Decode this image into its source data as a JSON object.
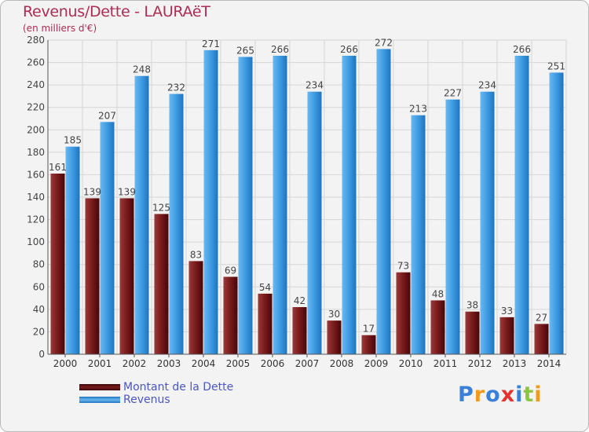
{
  "chart_data": {
    "type": "bar",
    "title": "Revenus/Dette - LAURAëT",
    "subtitle": "(en milliers d'€)",
    "categories": [
      "2000",
      "2001",
      "2002",
      "2003",
      "2004",
      "2005",
      "2006",
      "2007",
      "2008",
      "2009",
      "2010",
      "2011",
      "2012",
      "2013",
      "2014"
    ],
    "series": [
      {
        "name": "Montant de la Dette",
        "values": [
          161,
          139,
          139,
          125,
          83,
          69,
          54,
          42,
          30,
          17,
          73,
          48,
          38,
          33,
          27
        ],
        "color": "#6b0f14"
      },
      {
        "name": "Revenus",
        "values": [
          185,
          207,
          248,
          232,
          271,
          265,
          266,
          234,
          266,
          272,
          213,
          227,
          234,
          266,
          251
        ],
        "color": "#2f8fd8"
      }
    ],
    "ylim": [
      0,
      280
    ],
    "ytick_step": 20,
    "grid": true,
    "legend_position": "bottom-left"
  },
  "logo": {
    "text": "Proxiti",
    "letters": [
      "P",
      "r",
      "o",
      "x",
      "i",
      "t",
      "i"
    ],
    "colors": [
      "#3a7fd8",
      "#f29a1e",
      "#3a7fd8",
      "#e6312d",
      "#3a7fd8",
      "#8cc63f",
      "#f29a1e"
    ]
  }
}
